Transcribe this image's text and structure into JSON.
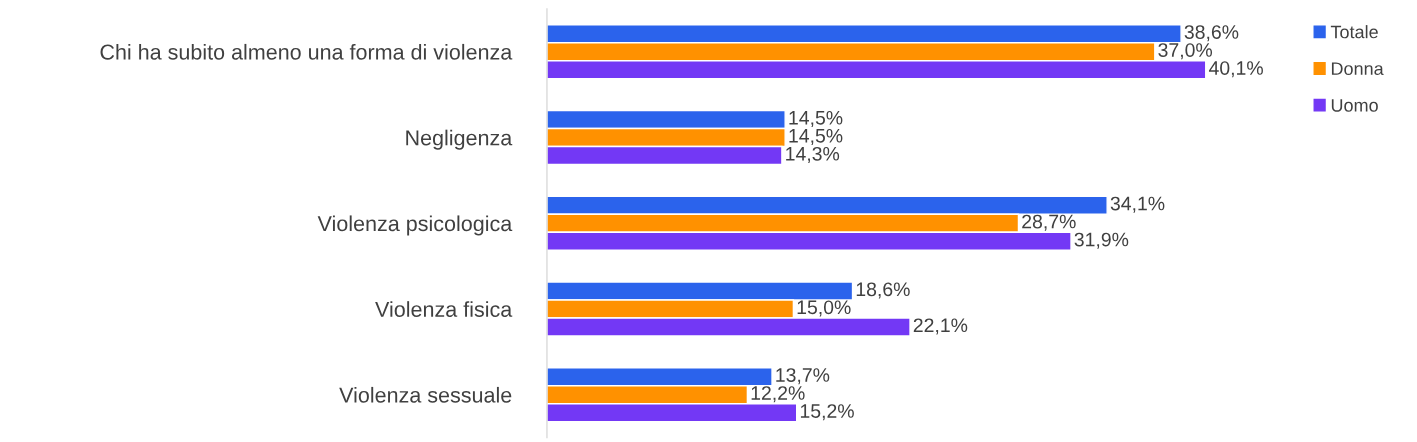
{
  "chart_data": {
    "type": "bar",
    "orientation": "horizontal",
    "categories": [
      "Chi ha subito almeno una forma di violenza",
      "Negligenza",
      "Violenza psicologica",
      "Violenza fisica",
      "Violenza sessuale"
    ],
    "series": [
      {
        "name": "Totale",
        "color": "#2b63ec",
        "values": [
          38.6,
          14.5,
          34.1,
          18.6,
          13.7
        ],
        "value_labels": [
          "38,6%",
          "14,5%",
          "34,1%",
          "18,6%",
          "13,7%"
        ]
      },
      {
        "name": "Donna",
        "color": "#ff9100",
        "values": [
          37.0,
          14.5,
          28.7,
          15.0,
          12.2
        ],
        "value_labels": [
          "37,0%",
          "14,5%",
          "28,7%",
          "15,0%",
          "12,2%"
        ]
      },
      {
        "name": "Uomo",
        "color": "#7338f5",
        "values": [
          40.1,
          14.3,
          31.9,
          22.1,
          15.2
        ],
        "value_labels": [
          "40,1%",
          "14,3%",
          "31,9%",
          "22,1%",
          "15,2%"
        ]
      }
    ],
    "legend": "top right",
    "grid": false
  }
}
